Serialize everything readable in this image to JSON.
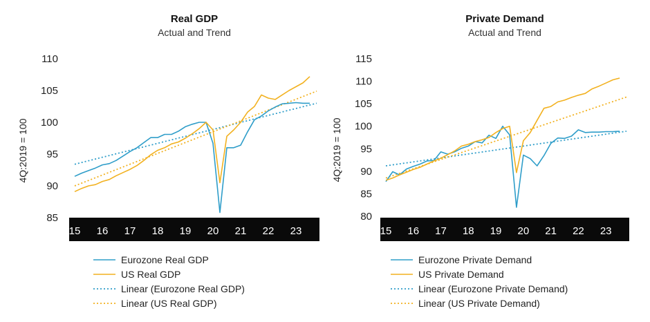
{
  "colors": {
    "eurozone": "#2e9dc9",
    "us": "#f2b11f",
    "axis_band": "#0a0a0a",
    "axis_text": "#ffffff"
  },
  "chart_data": [
    {
      "type": "line",
      "title": "Real GDP",
      "subtitle": "Actual and Trend",
      "ylabel": "4Q:2019 = 100",
      "ylim": [
        85,
        110
      ],
      "yticks": [
        85,
        90,
        95,
        100,
        105,
        110
      ],
      "xlim": [
        2014.8,
        2023.85
      ],
      "xticks": [
        "15",
        "16",
        "17",
        "18",
        "19",
        "20",
        "21",
        "22",
        "23"
      ],
      "legend_position": "bottom",
      "series": [
        {
          "name": "Eurozone Real GDP",
          "style": "solid",
          "color_key": "eurozone",
          "x": [
            2015.0,
            2015.25,
            2015.5,
            2015.75,
            2016.0,
            2016.25,
            2016.5,
            2016.75,
            2017.0,
            2017.25,
            2017.5,
            2017.75,
            2018.0,
            2018.25,
            2018.5,
            2018.75,
            2019.0,
            2019.25,
            2019.5,
            2019.75,
            2020.0,
            2020.25,
            2020.5,
            2020.75,
            2021.0,
            2021.25,
            2021.5,
            2021.75,
            2022.0,
            2022.25,
            2022.5,
            2022.75,
            2023.0,
            2023.25,
            2023.5
          ],
          "values": [
            91.5,
            92.0,
            92.4,
            92.8,
            93.3,
            93.5,
            94.0,
            94.7,
            95.4,
            96.0,
            96.8,
            97.6,
            97.6,
            98.1,
            98.1,
            98.6,
            99.3,
            99.7,
            100.0,
            100.0,
            96.7,
            85.8,
            96.0,
            96.0,
            96.4,
            98.5,
            100.4,
            101.0,
            101.8,
            102.4,
            102.9,
            103.0,
            103.1,
            103.0,
            103.0
          ]
        },
        {
          "name": "US Real GDP",
          "style": "solid",
          "color_key": "us",
          "x": [
            2015.0,
            2015.25,
            2015.5,
            2015.75,
            2016.0,
            2016.25,
            2016.5,
            2016.75,
            2017.0,
            2017.25,
            2017.5,
            2017.75,
            2018.0,
            2018.25,
            2018.5,
            2018.75,
            2019.0,
            2019.25,
            2019.5,
            2019.75,
            2020.0,
            2020.25,
            2020.5,
            2020.75,
            2021.0,
            2021.25,
            2021.5,
            2021.75,
            2022.0,
            2022.25,
            2022.5,
            2022.75,
            2023.0,
            2023.25,
            2023.5
          ],
          "values": [
            89.1,
            89.6,
            90.0,
            90.2,
            90.7,
            91.0,
            91.6,
            92.1,
            92.6,
            93.2,
            94.0,
            94.9,
            95.6,
            96.0,
            96.6,
            96.9,
            97.5,
            98.2,
            99.0,
            100.0,
            98.8,
            90.5,
            97.8,
            98.8,
            100.0,
            101.6,
            102.5,
            104.3,
            103.8,
            103.6,
            104.3,
            105.0,
            105.6,
            106.2,
            107.2
          ]
        },
        {
          "name": "Linear (Eurozone Real GDP)",
          "style": "dotted",
          "color_key": "eurozone",
          "x": [
            2015.0,
            2023.75
          ],
          "values": [
            93.4,
            103.0
          ]
        },
        {
          "name": "Linear (US Real GDP)",
          "style": "dotted",
          "color_key": "us",
          "x": [
            2015.0,
            2023.75
          ],
          "values": [
            90.0,
            104.9
          ]
        }
      ]
    },
    {
      "type": "line",
      "title": "Private Demand",
      "subtitle": "Actual and Trend",
      "ylabel": "4Q:2019 = 100",
      "ylim": [
        80,
        115
      ],
      "yticks": [
        80,
        85,
        90,
        95,
        100,
        105,
        110,
        115
      ],
      "xlim": [
        2014.8,
        2023.85
      ],
      "xticks": [
        "15",
        "16",
        "17",
        "18",
        "19",
        "20",
        "21",
        "22",
        "23"
      ],
      "legend_position": "bottom",
      "series": [
        {
          "name": "Eurozone Private Demand",
          "style": "solid",
          "color_key": "eurozone",
          "x": [
            2015.0,
            2015.25,
            2015.5,
            2015.75,
            2016.0,
            2016.25,
            2016.5,
            2016.75,
            2017.0,
            2017.25,
            2017.5,
            2017.75,
            2018.0,
            2018.25,
            2018.5,
            2018.75,
            2019.0,
            2019.25,
            2019.5,
            2019.75,
            2020.0,
            2020.25,
            2020.5,
            2020.75,
            2021.0,
            2021.25,
            2021.5,
            2021.75,
            2022.0,
            2022.25,
            2022.5,
            2022.75,
            2023.0,
            2023.25,
            2023.5
          ],
          "values": [
            87.7,
            89.9,
            89.2,
            90.5,
            91.1,
            91.6,
            92.3,
            92.4,
            94.3,
            93.8,
            94.3,
            95.1,
            95.6,
            96.6,
            96.3,
            98.0,
            97.3,
            100.0,
            98.1,
            82.0,
            93.6,
            92.8,
            91.2,
            93.5,
            96.2,
            97.4,
            97.3,
            97.8,
            99.2,
            98.6,
            98.7,
            98.7,
            98.8,
            98.8,
            98.9
          ]
        },
        {
          "name": "US Private Demand",
          "style": "solid",
          "color_key": "us",
          "x": [
            2015.0,
            2015.25,
            2015.5,
            2015.75,
            2016.0,
            2016.25,
            2016.5,
            2016.75,
            2017.0,
            2017.25,
            2017.5,
            2017.75,
            2018.0,
            2018.25,
            2018.5,
            2018.75,
            2019.0,
            2019.25,
            2019.5,
            2019.75,
            2020.0,
            2020.25,
            2020.5,
            2020.75,
            2021.0,
            2021.25,
            2021.5,
            2021.75,
            2022.0,
            2022.25,
            2022.5,
            2022.75,
            2023.0,
            2023.25,
            2023.5
          ],
          "values": [
            88.0,
            88.5,
            89.2,
            89.8,
            90.4,
            90.9,
            91.6,
            92.3,
            92.9,
            93.7,
            94.5,
            95.6,
            96.0,
            96.6,
            97.0,
            97.5,
            98.6,
            99.5,
            100.0,
            89.7,
            96.8,
            98.6,
            101.3,
            104.0,
            104.4,
            105.4,
            105.8,
            106.4,
            106.9,
            107.3,
            108.3,
            108.9,
            109.6,
            110.3,
            110.7
          ]
        },
        {
          "name": "Linear (Eurozone Private Demand)",
          "style": "dotted",
          "color_key": "eurozone",
          "x": [
            2015.0,
            2023.75
          ],
          "values": [
            91.2,
            98.9
          ]
        },
        {
          "name": "Linear (US Private Demand)",
          "style": "dotted",
          "color_key": "us",
          "x": [
            2015.0,
            2023.75
          ],
          "values": [
            88.5,
            106.5
          ]
        }
      ]
    }
  ]
}
